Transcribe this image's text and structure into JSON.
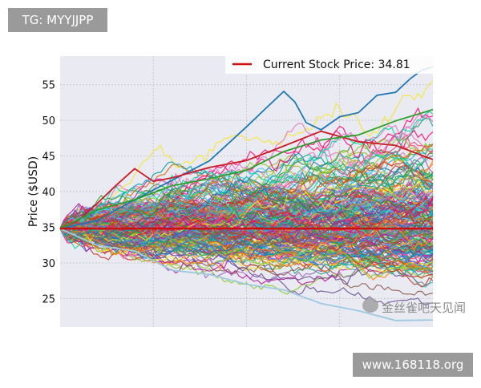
{
  "top_badge": {
    "text": "TG: MYYJJPP"
  },
  "bottom_badge": {
    "text": "www.168118.org"
  },
  "watermark": {
    "text": "金丝雀吧天见闻"
  },
  "colors": {
    "background": "#ffffff",
    "plot_background": "#eaeaf2",
    "badge": "#9a9a9a",
    "current_price_line": "#cc1111"
  },
  "chart_data": {
    "type": "line",
    "title": "",
    "xlabel": "",
    "ylabel": "Price ($USD)",
    "ylim": [
      21,
      59
    ],
    "xlim": [
      0,
      100
    ],
    "yticks": [
      25,
      30,
      35,
      40,
      45,
      50,
      55
    ],
    "grid": true,
    "legend": {
      "placement": "top-right",
      "entries": [
        {
          "label": "Current Stock Price: 34.81",
          "color": "#cc1111"
        }
      ]
    },
    "reference_line": {
      "name": "Current Stock Price: 34.81",
      "y": 34.81,
      "color": "#cc1111"
    },
    "simulation": {
      "start_price": 34.81,
      "num_paths": 220,
      "num_steps": 100,
      "approx_final_range": [
        21.5,
        57.5
      ]
    },
    "highlight_series": [
      {
        "color": "#1f77b4",
        "x": [
          0,
          10,
          20,
          30,
          40,
          50,
          55,
          60,
          63,
          66,
          70,
          75,
          80,
          85,
          90,
          94,
          97,
          100
        ],
        "y": [
          34.8,
          36.5,
          39.0,
          41.5,
          44.0,
          49.0,
          52.0,
          53.5,
          52.5,
          50.0,
          49.0,
          50.0,
          51.5,
          53.0,
          54.5,
          55.5,
          56.5,
          57.5
        ]
      },
      {
        "color": "#c81d25",
        "x": [
          0,
          5,
          10,
          15,
          20,
          25,
          30,
          40,
          50,
          60,
          70,
          80,
          90,
          100
        ],
        "y": [
          34.8,
          36.0,
          38.5,
          41.0,
          43.0,
          42.0,
          41.5,
          43.0,
          44.5,
          46.0,
          48.5,
          46.5,
          47.0,
          44.5
        ]
      },
      {
        "color": "#2ca02c",
        "x": [
          0,
          10,
          20,
          30,
          40,
          50,
          60,
          70,
          80,
          90,
          100
        ],
        "y": [
          34.8,
          37.0,
          38.5,
          40.5,
          42.0,
          43.0,
          45.5,
          47.0,
          48.5,
          50.5,
          51.5
        ]
      },
      {
        "color": "#9ecae1",
        "x": [
          0,
          10,
          20,
          30,
          40,
          50,
          60,
          70,
          80,
          90,
          100
        ],
        "y": [
          34.8,
          33.0,
          31.5,
          29.5,
          28.0,
          27.0,
          26.0,
          24.5,
          23.5,
          22.5,
          22.0
        ]
      }
    ]
  }
}
